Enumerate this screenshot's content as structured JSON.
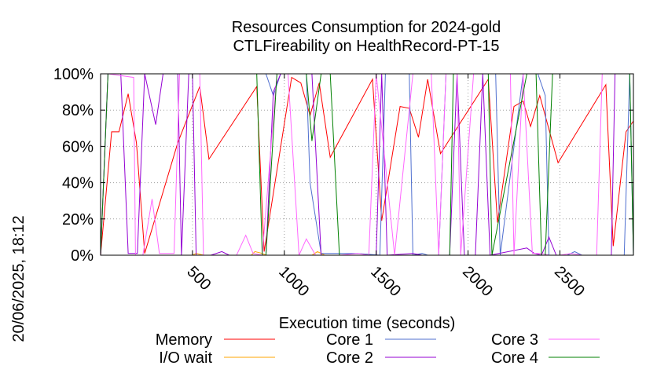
{
  "chart_data": {
    "type": "line",
    "title": "Resources Consumption for 2024-gold",
    "subtitle": "CTLFireability on HealthRecord-PT-15",
    "xlabel": "Execution time (seconds)",
    "ylabel": "",
    "side_label": "20/06/2025, 18:12",
    "xlim": [
      0,
      2900
    ],
    "ylim": [
      0,
      100
    ],
    "x_ticks": [
      "500",
      "1000",
      "1500",
      "2000",
      "2500"
    ],
    "x_tick_values": [
      500,
      1000,
      1500,
      2000,
      2500
    ],
    "y_ticks": [
      "0%",
      "20%",
      "40%",
      "60%",
      "80%",
      "100%"
    ],
    "y_tick_values": [
      0,
      20,
      40,
      60,
      80,
      100
    ],
    "grid": true,
    "legend_position": "bottom",
    "series": [
      {
        "name": "Memory",
        "color": "#ff0000",
        "points": [
          [
            0,
            0
          ],
          [
            60,
            68
          ],
          [
            100,
            68
          ],
          [
            150,
            89
          ],
          [
            195,
            62
          ],
          [
            240,
            1
          ],
          [
            420,
            62
          ],
          [
            540,
            93
          ],
          [
            590,
            53
          ],
          [
            850,
            93
          ],
          [
            890,
            2
          ],
          [
            1040,
            98
          ],
          [
            1090,
            95
          ],
          [
            1140,
            77
          ],
          [
            1190,
            95
          ],
          [
            1250,
            54
          ],
          [
            1480,
            97
          ],
          [
            1530,
            19
          ],
          [
            1630,
            82
          ],
          [
            1680,
            81
          ],
          [
            1730,
            65
          ],
          [
            1780,
            97
          ],
          [
            1850,
            56
          ],
          [
            2110,
            97
          ],
          [
            2160,
            18
          ],
          [
            2250,
            82
          ],
          [
            2300,
            85
          ],
          [
            2340,
            71
          ],
          [
            2390,
            88
          ],
          [
            2490,
            51
          ],
          [
            2750,
            94
          ],
          [
            2790,
            5
          ],
          [
            2860,
            68
          ],
          [
            2900,
            74
          ]
        ]
      },
      {
        "name": "I/O wait",
        "color": "#ffa500",
        "points": [
          [
            0,
            0
          ],
          [
            500,
            0
          ],
          [
            520,
            1
          ],
          [
            560,
            0
          ],
          [
            820,
            0
          ],
          [
            840,
            2
          ],
          [
            880,
            1
          ],
          [
            900,
            0
          ],
          [
            1150,
            0
          ],
          [
            1180,
            2
          ],
          [
            1220,
            0
          ],
          [
            2900,
            0
          ]
        ]
      },
      {
        "name": "Core 1",
        "color": "#4f6fcf",
        "points": [
          [
            0,
            0
          ],
          [
            40,
            100
          ],
          [
            900,
            100
          ],
          [
            940,
            88
          ],
          [
            980,
            100
          ],
          [
            1120,
            100
          ],
          [
            1140,
            40
          ],
          [
            1200,
            1
          ],
          [
            1400,
            1
          ],
          [
            1520,
            0
          ],
          [
            1550,
            100
          ],
          [
            1680,
            100
          ],
          [
            1700,
            0
          ],
          [
            1750,
            1
          ],
          [
            1780,
            0
          ],
          [
            1840,
            0
          ],
          [
            1880,
            100
          ],
          [
            2150,
            100
          ],
          [
            2175,
            0
          ],
          [
            2300,
            100
          ],
          [
            2380,
            100
          ],
          [
            2420,
            88
          ],
          [
            2440,
            0
          ],
          [
            2540,
            0
          ],
          [
            2580,
            2
          ],
          [
            2620,
            0
          ],
          [
            2850,
            0
          ],
          [
            2880,
            100
          ],
          [
            2900,
            0
          ]
        ]
      },
      {
        "name": "Core 2",
        "color": "#9400d3",
        "points": [
          [
            0,
            0
          ],
          [
            40,
            100
          ],
          [
            110,
            100
          ],
          [
            150,
            1
          ],
          [
            200,
            1
          ],
          [
            240,
            100
          ],
          [
            300,
            72
          ],
          [
            340,
            100
          ],
          [
            420,
            100
          ],
          [
            440,
            0
          ],
          [
            480,
            100
          ],
          [
            500,
            100
          ],
          [
            520,
            0
          ],
          [
            600,
            0
          ],
          [
            660,
            2
          ],
          [
            700,
            0
          ],
          [
            900,
            0
          ],
          [
            940,
            90
          ],
          [
            980,
            100
          ],
          [
            1120,
            100
          ],
          [
            1150,
            100
          ],
          [
            1200,
            0
          ],
          [
            1500,
            0
          ],
          [
            1530,
            100
          ],
          [
            1560,
            0
          ],
          [
            1700,
            1
          ],
          [
            1750,
            0
          ],
          [
            1900,
            0
          ],
          [
            1940,
            100
          ],
          [
            1980,
            0
          ],
          [
            2040,
            0
          ],
          [
            2080,
            100
          ],
          [
            2120,
            0
          ],
          [
            2320,
            4
          ],
          [
            2360,
            1
          ],
          [
            2400,
            0
          ],
          [
            2440,
            10
          ],
          [
            2480,
            0
          ],
          [
            2780,
            0
          ],
          [
            2800,
            100
          ],
          [
            2900,
            100
          ]
        ]
      },
      {
        "name": "Core 3",
        "color": "#ff66ff",
        "points": [
          [
            0,
            0
          ],
          [
            40,
            100
          ],
          [
            180,
            98
          ],
          [
            190,
            0
          ],
          [
            230,
            0
          ],
          [
            280,
            31
          ],
          [
            320,
            1
          ],
          [
            400,
            1
          ],
          [
            430,
            100
          ],
          [
            540,
            100
          ],
          [
            560,
            0
          ],
          [
            740,
            0
          ],
          [
            790,
            11
          ],
          [
            830,
            1
          ],
          [
            880,
            0
          ],
          [
            960,
            100
          ],
          [
            1020,
            100
          ],
          [
            1080,
            0
          ],
          [
            1120,
            9
          ],
          [
            1170,
            0
          ],
          [
            1300,
            0
          ],
          [
            1400,
            1
          ],
          [
            1460,
            0
          ],
          [
            1500,
            100
          ],
          [
            1600,
            0
          ],
          [
            1700,
            100
          ],
          [
            1800,
            100
          ],
          [
            1840,
            0
          ],
          [
            1880,
            100
          ],
          [
            1940,
            100
          ],
          [
            1960,
            0
          ],
          [
            2030,
            100
          ],
          [
            2230,
            100
          ],
          [
            2250,
            0
          ],
          [
            2300,
            100
          ],
          [
            2350,
            1
          ],
          [
            2400,
            1
          ],
          [
            2440,
            0
          ],
          [
            2500,
            0
          ],
          [
            2560,
            1
          ],
          [
            2620,
            0
          ],
          [
            2700,
            0
          ],
          [
            2730,
            100
          ],
          [
            2900,
            100
          ]
        ]
      },
      {
        "name": "Core 4",
        "color": "#008000",
        "points": [
          [
            0,
            0
          ],
          [
            40,
            100
          ],
          [
            850,
            100
          ],
          [
            880,
            0
          ],
          [
            900,
            0
          ],
          [
            960,
            100
          ],
          [
            1120,
            100
          ],
          [
            1150,
            63
          ],
          [
            1200,
            100
          ],
          [
            1250,
            100
          ],
          [
            1300,
            0
          ],
          [
            1900,
            0
          ],
          [
            1920,
            100
          ],
          [
            2110,
            100
          ],
          [
            2130,
            0
          ],
          [
            2320,
            100
          ],
          [
            2370,
            100
          ],
          [
            2400,
            0
          ],
          [
            2420,
            0
          ],
          [
            2460,
            100
          ],
          [
            2880,
            100
          ],
          [
            2900,
            0
          ]
        ]
      }
    ]
  }
}
